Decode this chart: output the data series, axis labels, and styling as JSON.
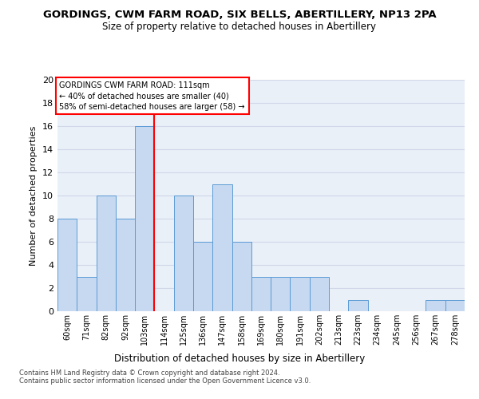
{
  "title": "GORDINGS, CWM FARM ROAD, SIX BELLS, ABERTILLERY, NP13 2PA",
  "subtitle": "Size of property relative to detached houses in Abertillery",
  "xlabel": "Distribution of detached houses by size in Abertillery",
  "ylabel": "Number of detached properties",
  "categories": [
    "60sqm",
    "71sqm",
    "82sqm",
    "92sqm",
    "103sqm",
    "114sqm",
    "125sqm",
    "136sqm",
    "147sqm",
    "158sqm",
    "169sqm",
    "180sqm",
    "191sqm",
    "202sqm",
    "213sqm",
    "223sqm",
    "234sqm",
    "245sqm",
    "256sqm",
    "267sqm",
    "278sqm"
  ],
  "values": [
    8,
    3,
    10,
    8,
    16,
    0,
    10,
    6,
    11,
    6,
    3,
    3,
    3,
    3,
    0,
    1,
    0,
    0,
    0,
    1,
    1
  ],
  "bar_color": "#c6d9f0",
  "bar_edge_color": "#5b9bd5",
  "red_line_index": 4,
  "annotation_title": "GORDINGS CWM FARM ROAD: 111sqm",
  "annotation_line1": "← 40% of detached houses are smaller (40)",
  "annotation_line2": "58% of semi-detached houses are larger (58) →",
  "ylim": [
    0,
    20
  ],
  "yticks": [
    0,
    2,
    4,
    6,
    8,
    10,
    12,
    14,
    16,
    18,
    20
  ],
  "grid_color": "#d0d8e8",
  "background_color": "#eaf0f8",
  "footnote1": "Contains HM Land Registry data © Crown copyright and database right 2024.",
  "footnote2": "Contains public sector information licensed under the Open Government Licence v3.0."
}
